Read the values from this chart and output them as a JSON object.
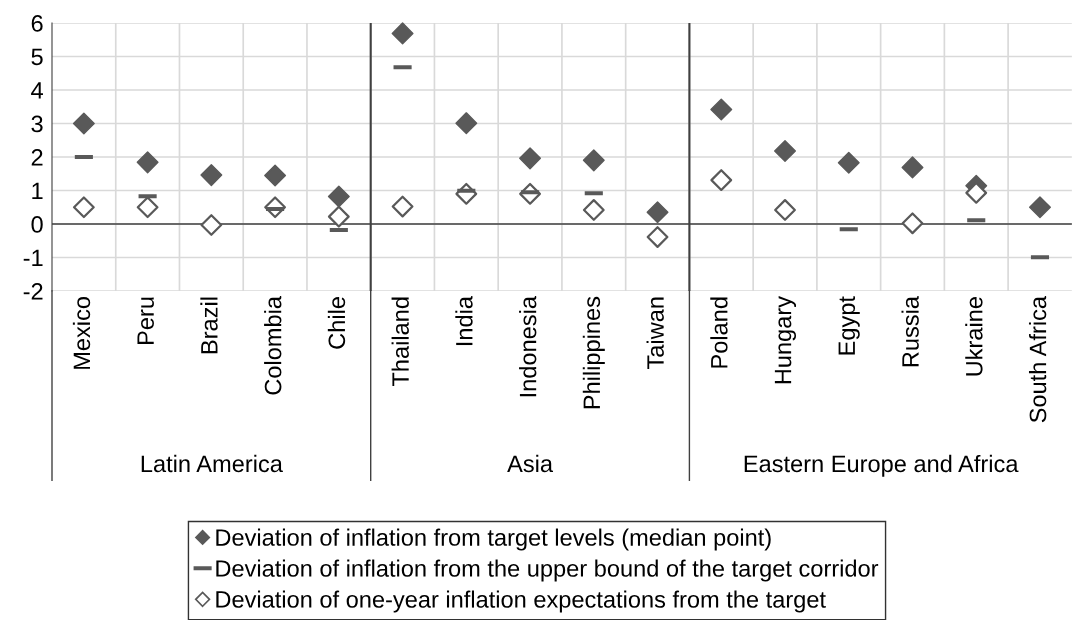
{
  "chart_data": {
    "type": "scatter",
    "categories": [
      "Mexico",
      "Peru",
      "Brazil",
      "Colombia",
      "Chile",
      "Thailand",
      "India",
      "Indonesia",
      "Philippines",
      "Taiwan",
      "Poland",
      "Hungary",
      "Egypt",
      "Russia",
      "Ukraine",
      "South Africa"
    ],
    "series": [
      {
        "name": "Deviation of inflation from target levels (median point)",
        "color": "#595959",
        "marker": "diamond",
        "values": [
          3.0,
          1.84,
          1.46,
          1.45,
          0.82,
          5.69,
          3.01,
          1.96,
          1.9,
          0.35,
          3.42,
          2.18,
          1.83,
          1.69,
          1.14,
          0.5
        ]
      },
      {
        "name": "Deviation of inflation from the upper bound of the target corridor",
        "color": "#595959",
        "values": [
          2.0,
          0.83,
          null,
          0.45,
          -0.18,
          4.68,
          0.99,
          0.95,
          0.92,
          null,
          null,
          null,
          -0.16,
          null,
          0.11,
          -0.99
        ]
      },
      {
        "name": "Deviation of one-year inflation expectations from the target",
        "color": "#595959",
        "marker": "diamond-open",
        "values": [
          0.5,
          0.5,
          -0.03,
          0.5,
          0.22,
          0.52,
          0.9,
          0.9,
          0.42,
          -0.39,
          1.31,
          0.42,
          null,
          0.02,
          0.93,
          null
        ]
      }
    ],
    "ylim": [
      -2,
      6
    ],
    "yticks": [
      -2,
      -1,
      0,
      1,
      2,
      3,
      4,
      5,
      6
    ],
    "grid": true,
    "legend": "bottom",
    "annotations": [
      "Latin America",
      "Asia",
      "Eastern Europe and Africa"
    ]
  }
}
